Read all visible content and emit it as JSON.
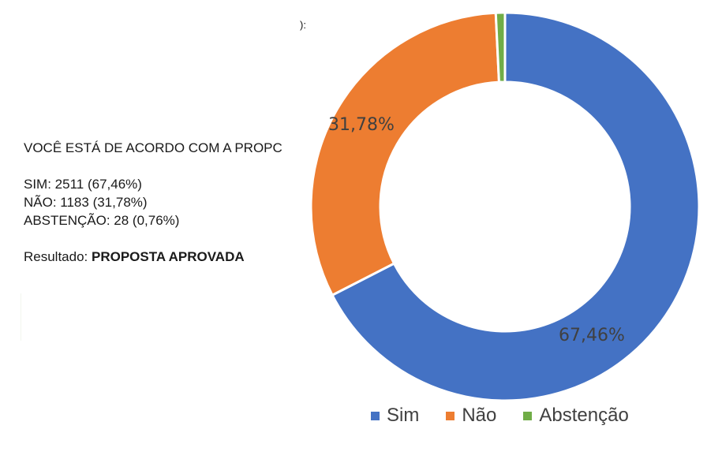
{
  "stray_text": "):",
  "info": {
    "question": "VOCÊ ESTÁ DE ACORDO COM A PROPC",
    "lines": [
      "SIM: 2511 (67,46%)",
      "NÃO: 1183 (31,78%)",
      "ABSTENÇÃO: 28 (0,76%)"
    ],
    "result_label": "Resultado: ",
    "result_value": "PROPOSTA APROVADA"
  },
  "chart": {
    "labels": {
      "sim": "67,46%",
      "nao": "31,78%"
    },
    "legend": [
      {
        "label": "Sim",
        "color": "#4472c4"
      },
      {
        "label": "Não",
        "color": "#ed7d31"
      },
      {
        "label": "Abstenção",
        "color": "#70ad47"
      }
    ]
  },
  "chart_data": {
    "type": "pie",
    "subtype": "donut",
    "title": "",
    "categories": [
      "Sim",
      "Não",
      "Abstenção"
    ],
    "values": [
      67.46,
      31.78,
      0.76
    ],
    "counts": [
      2511,
      1183,
      28
    ],
    "colors": [
      "#4472c4",
      "#ed7d31",
      "#70ad47"
    ],
    "data_labels": [
      "67,46%",
      "31,78%",
      ""
    ],
    "legend_position": "bottom",
    "start_angle_deg": 0,
    "direction": "clockwise"
  }
}
